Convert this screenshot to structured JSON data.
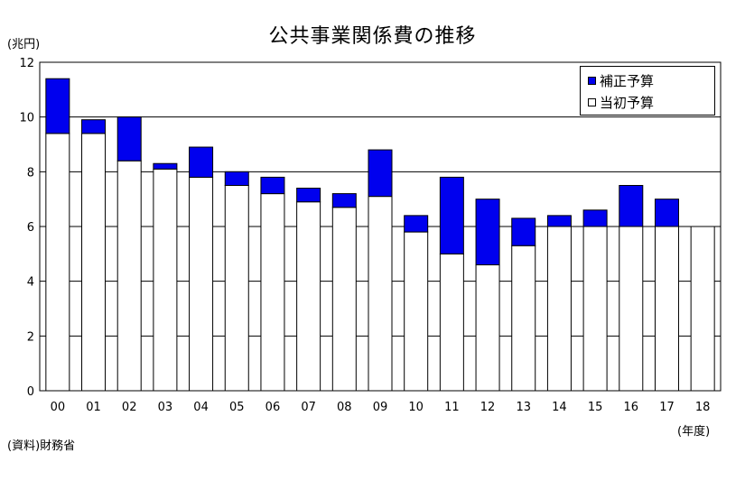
{
  "chart_data": {
    "type": "bar",
    "stacked": true,
    "title": "公共事業関係費の推移",
    "ylabel": "(兆円)",
    "xlabel": "(年度)",
    "source": "(資料)財務省",
    "ylim": [
      0,
      12
    ],
    "yticks": [
      0,
      2,
      4,
      6,
      8,
      10,
      12
    ],
    "grid": true,
    "legend_position": "top-right",
    "categories": [
      "00",
      "01",
      "02",
      "03",
      "04",
      "05",
      "06",
      "07",
      "08",
      "09",
      "10",
      "11",
      "12",
      "13",
      "14",
      "15",
      "16",
      "17",
      "18"
    ],
    "series": [
      {
        "name": "当初予算",
        "color": "#ffffff",
        "values": [
          9.4,
          9.4,
          8.4,
          8.1,
          7.8,
          7.5,
          7.2,
          6.9,
          6.7,
          7.1,
          5.8,
          5.0,
          4.6,
          5.3,
          6.0,
          6.0,
          6.0,
          6.0,
          6.0
        ]
      },
      {
        "name": "補正予算",
        "color": "#0000ee",
        "values": [
          2.0,
          0.5,
          1.6,
          0.2,
          1.1,
          0.5,
          0.6,
          0.5,
          0.5,
          1.7,
          0.6,
          2.8,
          2.4,
          1.0,
          0.4,
          0.6,
          1.5,
          1.0,
          0.0
        ]
      }
    ]
  }
}
